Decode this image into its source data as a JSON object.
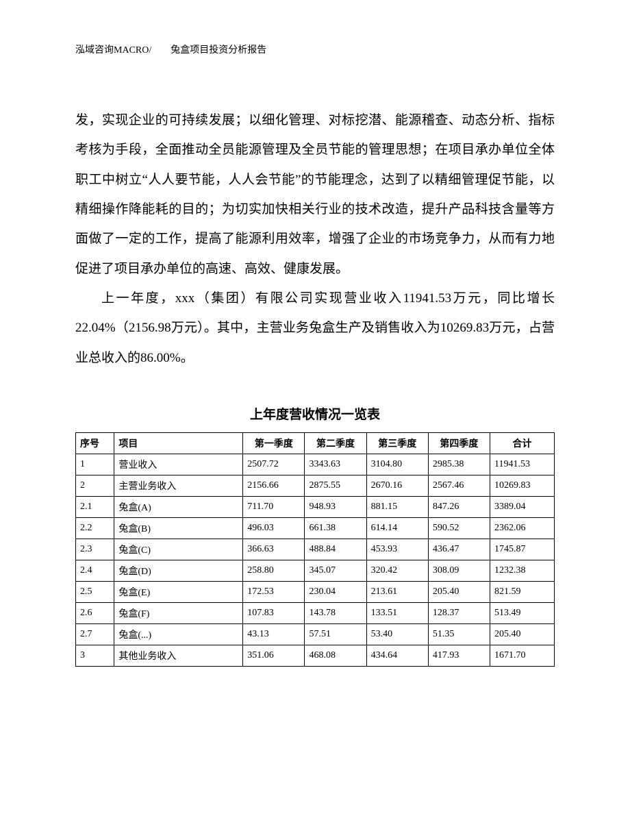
{
  "header": "泓域咨询MACRO/　　兔盒项目投资分析报告",
  "para1": "发，实现企业的可持续发展；以细化管理、对标挖潜、能源稽查、动态分析、指标考核为手段，全面推动全员能源管理及全员节能的管理思想；在项目承办单位全体职工中树立“人人要节能，人人会节能”的节能理念，达到了以精细管理促节能，以精细操作降能耗的目的；为切实加快相关行业的技术改造，提升产品科技含量等方面做了一定的工作，提高了能源利用效率，增强了企业的市场竞争力，从而有力地促进了项目承办单位的高速、高效、健康发展。",
  "para2": "上一年度，xxx（集团）有限公司实现营业收入11941.53万元，同比增长22.04%（2156.98万元）。其中，主营业务兔盒生产及销售收入为10269.83万元，占营业总收入的86.00%。",
  "tableTitle": "上年度营收情况一览表",
  "columns": [
    "序号",
    "项目",
    "第一季度",
    "第二季度",
    "第三季度",
    "第四季度",
    "合计"
  ],
  "rows": [
    [
      "1",
      "营业收入",
      "2507.72",
      "3343.63",
      "3104.80",
      "2985.38",
      "11941.53"
    ],
    [
      "2",
      "主营业务收入",
      "2156.66",
      "2875.55",
      "2670.16",
      "2567.46",
      "10269.83"
    ],
    [
      "2.1",
      "兔盒(A)",
      "711.70",
      "948.93",
      "881.15",
      "847.26",
      "3389.04"
    ],
    [
      "2.2",
      "兔盒(B)",
      "496.03",
      "661.38",
      "614.14",
      "590.52",
      "2362.06"
    ],
    [
      "2.3",
      "兔盒(C)",
      "366.63",
      "488.84",
      "453.93",
      "436.47",
      "1745.87"
    ],
    [
      "2.4",
      "兔盒(D)",
      "258.80",
      "345.07",
      "320.42",
      "308.09",
      "1232.38"
    ],
    [
      "2.5",
      "兔盒(E)",
      "172.53",
      "230.04",
      "213.61",
      "205.40",
      "821.59"
    ],
    [
      "2.6",
      "兔盒(F)",
      "107.83",
      "143.78",
      "133.51",
      "128.37",
      "513.49"
    ],
    [
      "2.7",
      "兔盒(...)",
      "43.13",
      "57.51",
      "53.40",
      "51.35",
      "205.40"
    ],
    [
      "3",
      "其他业务收入",
      "351.06",
      "468.08",
      "434.64",
      "417.93",
      "1671.70"
    ]
  ]
}
